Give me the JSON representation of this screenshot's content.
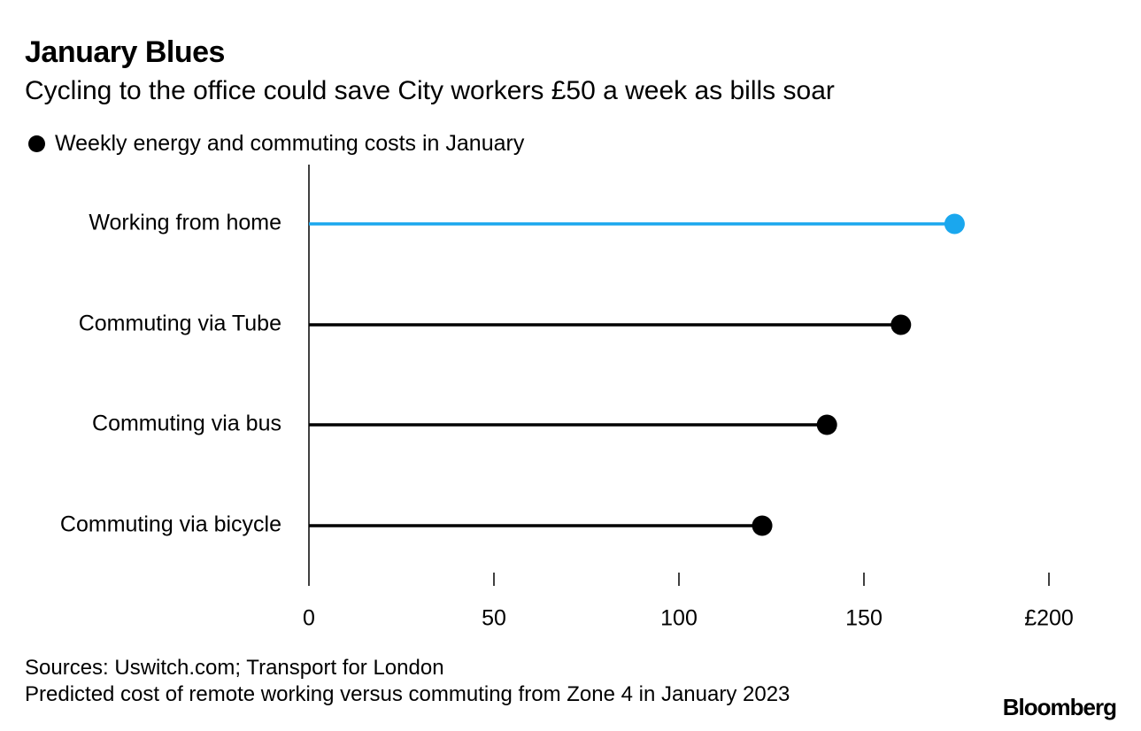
{
  "header": {
    "title": "January Blues",
    "subtitle": "Cycling to the office could save City workers £50 a week as bills soar"
  },
  "legend": {
    "label": "Weekly energy and commuting costs in January"
  },
  "footer": {
    "source": "Sources: Uswitch.com; Transport for London",
    "note": "Predicted cost of remote working versus commuting from Zone 4 in January 2023",
    "brand": "Bloomberg"
  },
  "colors": {
    "highlight": "#1aa7ee",
    "default": "#000000"
  },
  "chart_data": {
    "type": "dot",
    "title": "January Blues",
    "subtitle": "Cycling to the office could save City workers £50 a week as bills soar",
    "xlabel": "",
    "ylabel": "",
    "xlim": [
      0,
      200
    ],
    "x_ticks": [
      {
        "value": 0,
        "label": "0"
      },
      {
        "value": 50,
        "label": "50"
      },
      {
        "value": 100,
        "label": "100"
      },
      {
        "value": 150,
        "label": "150"
      },
      {
        "value": 200,
        "label": "£200"
      }
    ],
    "grid": false,
    "legend_position": "top-left",
    "categories": [
      "Working from home",
      "Commuting via Tube",
      "Commuting via bus",
      "Commuting via bicycle"
    ],
    "series": [
      {
        "name": "Weekly energy and commuting costs in January",
        "values": [
          174.5,
          160,
          140,
          122.5
        ],
        "highlight": [
          true,
          false,
          false,
          false
        ]
      }
    ]
  }
}
